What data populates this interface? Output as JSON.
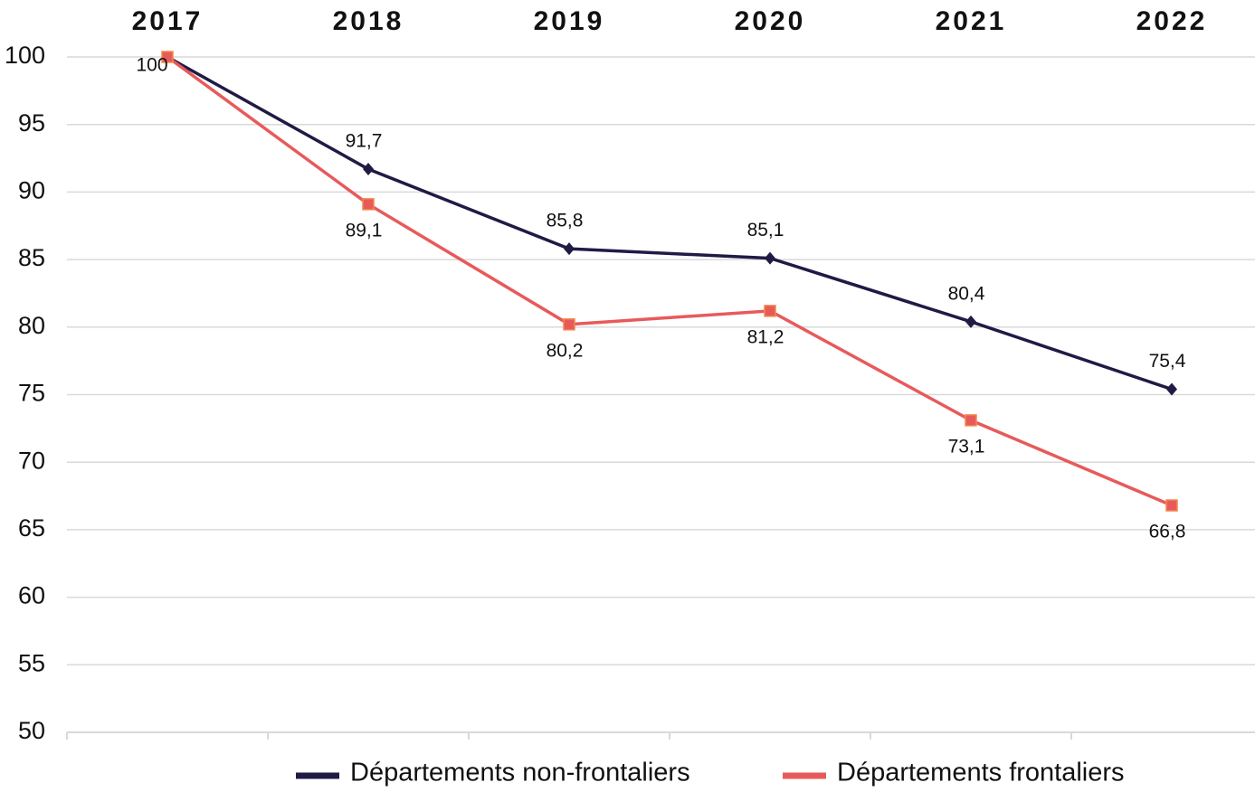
{
  "chart_data": {
    "type": "line",
    "categories": [
      "2017",
      "2018",
      "2019",
      "2020",
      "2021",
      "2022"
    ],
    "series": [
      {
        "name": "Départements non-frontaliers",
        "color": "#1f1b45",
        "marker": "diamond",
        "values": [
          100,
          91.7,
          85.8,
          85.1,
          80.4,
          75.4
        ],
        "value_labels": [
          null,
          "91,7",
          "85,8",
          "85,1",
          "80,4",
          "75,4"
        ]
      },
      {
        "name": "Départements frontaliers",
        "color": "#e85a5a",
        "marker": "square",
        "values": [
          100,
          89.1,
          80.2,
          81.2,
          73.1,
          66.8
        ],
        "value_labels": [
          "100",
          "89,1",
          "80,2",
          "81,2",
          "73,1",
          "66,8"
        ]
      }
    ],
    "ylim": [
      50,
      100
    ],
    "yticks": [
      50,
      55,
      60,
      65,
      70,
      75,
      80,
      85,
      90,
      95,
      100
    ],
    "grid": true,
    "legend": "bottom"
  }
}
